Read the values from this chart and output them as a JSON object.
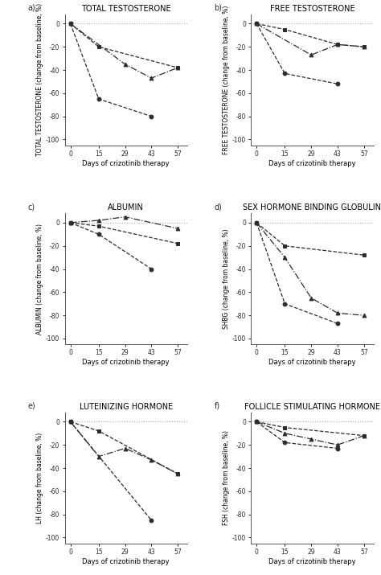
{
  "days": [
    0,
    15,
    29,
    43,
    57
  ],
  "panel_a_series": [
    [
      0,
      -65,
      null,
      -80,
      null
    ],
    [
      0,
      null,
      -35,
      -47,
      -38
    ],
    [
      0,
      -20,
      null,
      null,
      -38
    ]
  ],
  "panel_b_series": [
    [
      0,
      -43,
      null,
      -52,
      null
    ],
    [
      0,
      null,
      -27,
      -18,
      -20
    ],
    [
      0,
      -5,
      null,
      -18,
      -20
    ]
  ],
  "panel_c_series": [
    [
      0,
      -10,
      null,
      -40,
      null
    ],
    [
      0,
      2,
      5,
      null,
      -5
    ],
    [
      0,
      -3,
      null,
      null,
      -18
    ]
  ],
  "panel_d_series": [
    [
      0,
      -70,
      null,
      -87,
      null
    ],
    [
      0,
      -30,
      -65,
      -78,
      -80
    ],
    [
      0,
      -20,
      null,
      null,
      -28
    ]
  ],
  "panel_e_series": [
    [
      0,
      null,
      null,
      -85,
      null
    ],
    [
      0,
      -30,
      -23,
      -33,
      -45
    ],
    [
      0,
      -8,
      null,
      null,
      -45
    ]
  ],
  "panel_f_series": [
    [
      0,
      -18,
      null,
      -23,
      null
    ],
    [
      0,
      -10,
      -15,
      -20,
      -12
    ],
    [
      0,
      -5,
      null,
      null,
      -12
    ]
  ],
  "titles": [
    "TOTAL TESTOSTERONE",
    "FREE TESTOSTERONE",
    "ALBUMIN",
    "SEX HORMONE BINDING GLOBULIN",
    "LUTEINIZING HORMONE",
    "FOLLICLE STIMULATING HORMONE"
  ],
  "ylabels": [
    "TOTAL TESTOSTERONE (change from baseline, %)",
    "FREE TESTOSTERONE (change from baseline, %)",
    "ALBUMIN (change from baseline, %)",
    "SHBG (change from baseline, %)",
    "LH (change from baseline, %)",
    "FSH (change from baseline, %)"
  ],
  "panel_labels": [
    "a)",
    "b)",
    "c)",
    "d)",
    "e)",
    "f)"
  ],
  "markers": [
    "o",
    "^",
    "s"
  ],
  "linestyles": [
    "--",
    "-.",
    "--"
  ],
  "color": "#2b2b2b",
  "dotted_color": "#aaaaaa",
  "background": "#ffffff",
  "xlabel": "Days of crizotinib therapy",
  "xticks": [
    0,
    15,
    29,
    43,
    57
  ],
  "yticks": [
    0,
    -20,
    -40,
    -60,
    -80,
    -100
  ],
  "ylim": [
    -105,
    8
  ],
  "title_fontsize": 7.0,
  "panel_label_fontsize": 7.0,
  "tick_fontsize": 5.5,
  "axes_label_fontsize": 5.5,
  "xlabel_fontsize": 6.0
}
